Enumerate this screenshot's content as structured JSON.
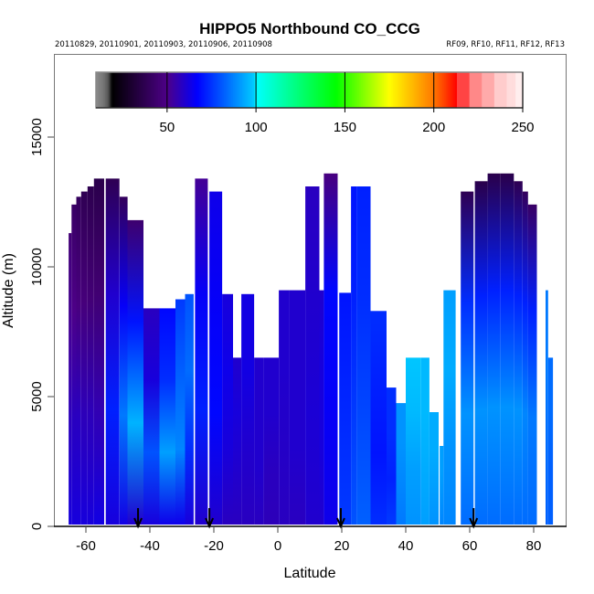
{
  "chart_data": {
    "type": "heatmap",
    "title": "HIPPO5 Northbound CO_CCG",
    "subtitle_left": "20110829, 20110901, 20110903, 20110906, 20110908",
    "subtitle_right": "RF09, RF10, RF11, RF12, RF13",
    "xlabel": "Latitude",
    "ylabel": "Altitude (m)",
    "xlim": [
      -71,
      90
    ],
    "ylim": [
      0,
      18200
    ],
    "xticks": [
      -60,
      -40,
      -20,
      0,
      20,
      40,
      60,
      80
    ],
    "xtick_labels": [
      "-60",
      "-40",
      "-20",
      "0",
      "20",
      "40",
      "60",
      "80"
    ],
    "yticks": [
      0,
      5000,
      10000,
      15000
    ],
    "ytick_labels": [
      "0",
      "5000",
      "10000",
      "15000"
    ],
    "colorbar": {
      "range": [
        10,
        250
      ],
      "ticks": [
        50,
        100,
        150,
        200,
        250
      ],
      "tick_labels": [
        "50",
        "100",
        "150",
        "200",
        "250"
      ],
      "stops": [
        {
          "v": 10,
          "c": "#8a8a8a"
        },
        {
          "v": 14,
          "c": "#777777"
        },
        {
          "v": 17,
          "c": "#555555"
        },
        {
          "v": 19,
          "c": "#000000"
        },
        {
          "v": 50,
          "c": "#4d0088"
        },
        {
          "v": 67,
          "c": "#0000ff"
        },
        {
          "v": 99,
          "c": "#00ccff"
        },
        {
          "v": 100,
          "c": "#00ffff"
        },
        {
          "v": 145,
          "c": "#00ff00"
        },
        {
          "v": 175,
          "c": "#ffff00"
        },
        {
          "v": 200,
          "c": "#ff7700"
        },
        {
          "v": 213,
          "c": "#ff0000"
        }
      ],
      "blocks": [
        {
          "v0": 213,
          "v1": 220,
          "c": "#ff4444"
        },
        {
          "v0": 220,
          "v1": 227,
          "c": "#ff8888"
        },
        {
          "v0": 227,
          "v1": 234,
          "c": "#ffaaaa"
        },
        {
          "v0": 234,
          "v1": 241,
          "c": "#ffcccc"
        },
        {
          "v0": 241,
          "v1": 246,
          "c": "#ffdddd"
        },
        {
          "v0": 246,
          "v1": 250,
          "c": "#ffeeee"
        }
      ]
    },
    "columns": [
      {
        "lat0": -65.4,
        "lat1": -64.5,
        "top": 11300,
        "co": [
          62,
          58,
          52,
          46
        ]
      },
      {
        "lat0": -64.5,
        "lat1": -63.0,
        "top": 12400,
        "co": [
          62,
          58,
          50,
          42
        ]
      },
      {
        "lat0": -63.0,
        "lat1": -61.5,
        "top": 12700,
        "co": [
          62,
          58,
          48,
          40
        ]
      },
      {
        "lat0": -61.5,
        "lat1": -59.5,
        "top": 12900,
        "co": [
          62,
          57,
          47,
          38
        ]
      },
      {
        "lat0": -59.5,
        "lat1": -57.5,
        "top": 13100,
        "co": [
          62,
          57,
          46,
          37
        ]
      },
      {
        "lat0": -57.5,
        "lat1": -54.3,
        "top": 13400,
        "co": [
          63,
          56,
          45,
          36
        ]
      },
      {
        "lat0": -53.8,
        "lat1": -49.5,
        "top": 13400,
        "co": [
          62,
          72,
          60,
          38
        ]
      },
      {
        "lat0": -49.5,
        "lat1": -47.0,
        "top": 12700,
        "co": [
          63,
          86,
          66,
          40
        ]
      },
      {
        "lat0": -47.0,
        "lat1": -42.0,
        "top": 11800,
        "co": [
          60,
          95,
          70,
          44
        ]
      },
      {
        "lat0": -42.0,
        "lat1": -37.0,
        "top": 8400,
        "co": [
          62,
          80,
          62,
          58
        ]
      },
      {
        "lat0": -37.0,
        "lat1": -32.0,
        "top": 8400,
        "co": [
          64,
          92,
          74,
          68
        ]
      },
      {
        "lat0": -32.0,
        "lat1": -29.0,
        "top": 8750,
        "co": [
          64,
          88,
          82,
          76
        ]
      },
      {
        "lat0": -29.0,
        "lat1": -26.3,
        "top": 8950,
        "co": [
          62,
          74,
          84,
          80
        ]
      },
      {
        "lat0": -25.9,
        "lat1": -21.9,
        "top": 13400,
        "co": [
          60,
          72,
          66,
          52
        ]
      },
      {
        "lat0": -21.4,
        "lat1": -17.4,
        "top": 12900,
        "co": [
          60,
          68,
          66,
          64
        ]
      },
      {
        "lat0": -17.4,
        "lat1": -14.0,
        "top": 8950,
        "co": [
          58,
          62,
          64,
          62
        ]
      },
      {
        "lat0": -14.0,
        "lat1": -11.4,
        "top": 6500,
        "co": [
          58,
          60,
          62,
          60
        ]
      },
      {
        "lat0": -11.4,
        "lat1": -7.4,
        "top": 8950,
        "co": [
          58,
          60,
          63,
          63
        ]
      },
      {
        "lat0": -7.4,
        "lat1": -4.4,
        "top": 6500,
        "co": [
          58,
          60,
          60,
          60
        ]
      },
      {
        "lat0": -4.4,
        "lat1": 0.3,
        "top": 6500,
        "co": [
          57,
          58,
          60,
          60
        ]
      },
      {
        "lat0": 0.3,
        "lat1": 3.6,
        "top": 9100,
        "co": [
          58,
          59,
          60,
          60
        ]
      },
      {
        "lat0": 3.6,
        "lat1": 8.6,
        "top": 9100,
        "co": [
          58,
          60,
          60,
          60
        ]
      },
      {
        "lat0": 8.6,
        "lat1": 13.0,
        "top": 13100,
        "co": [
          60,
          61,
          60,
          58
        ]
      },
      {
        "lat0": 13.0,
        "lat1": 14.4,
        "top": 9100,
        "co": [
          60,
          62,
          62,
          60
        ]
      },
      {
        "lat0": 14.4,
        "lat1": 18.7,
        "top": 13600,
        "co": [
          64,
          66,
          68,
          48
        ]
      },
      {
        "lat0": 19.2,
        "lat1": 22.9,
        "top": 9000,
        "co": [
          76,
          74,
          72,
          70
        ]
      },
      {
        "lat0": 22.9,
        "lat1": 24.6,
        "top": 13100,
        "co": [
          80,
          76,
          72,
          70
        ]
      },
      {
        "lat0": 24.6,
        "lat1": 29.0,
        "top": 13100,
        "co": [
          82,
          78,
          74,
          72
        ]
      },
      {
        "lat0": 29.0,
        "lat1": 34.0,
        "top": 8300,
        "co": [
          74,
          70,
          72,
          74
        ]
      },
      {
        "lat0": 34.0,
        "lat1": 37.0,
        "top": 5350,
        "co": [
          76,
          72,
          74,
          74
        ]
      },
      {
        "lat0": 37.0,
        "lat1": 40.0,
        "top": 4750,
        "co": [
          86,
          88,
          90,
          90
        ]
      },
      {
        "lat0": 40.0,
        "lat1": 44.8,
        "top": 6500,
        "co": [
          90,
          92,
          96,
          98
        ]
      },
      {
        "lat0": 44.8,
        "lat1": 47.4,
        "top": 6500,
        "co": [
          92,
          94,
          96,
          96
        ]
      },
      {
        "lat0": 47.4,
        "lat1": 50.3,
        "top": 4400,
        "co": [
          90,
          92,
          94,
          94
        ]
      },
      {
        "lat0": 50.6,
        "lat1": 51.8,
        "top": 3100,
        "co": [
          88,
          90,
          92,
          92
        ]
      },
      {
        "lat0": 51.8,
        "lat1": 55.6,
        "top": 9100,
        "co": [
          88,
          90,
          94,
          92
        ]
      },
      {
        "lat0": 57.2,
        "lat1": 61.2,
        "top": 12900,
        "co": [
          84,
          90,
          74,
          38
        ]
      },
      {
        "lat0": 61.6,
        "lat1": 65.6,
        "top": 13300,
        "co": [
          84,
          90,
          72,
          36
        ]
      },
      {
        "lat0": 65.6,
        "lat1": 69.5,
        "top": 13600,
        "co": [
          84,
          90,
          72,
          36
        ]
      },
      {
        "lat0": 69.5,
        "lat1": 73.8,
        "top": 13600,
        "co": [
          84,
          90,
          72,
          36
        ]
      },
      {
        "lat0": 73.8,
        "lat1": 76.5,
        "top": 13300,
        "co": [
          84,
          90,
          72,
          38
        ]
      },
      {
        "lat0": 76.5,
        "lat1": 78.2,
        "top": 12900,
        "co": [
          84,
          88,
          72,
          40
        ]
      },
      {
        "lat0": 78.2,
        "lat1": 81.0,
        "top": 12400,
        "co": [
          84,
          86,
          72,
          42
        ]
      },
      {
        "lat0": 83.7,
        "lat1": 84.5,
        "top": 9100,
        "co": [
          82,
          84,
          86,
          86
        ]
      },
      {
        "lat0": 84.5,
        "lat1": 86.0,
        "top": 6500,
        "co": [
          82,
          82,
          84,
          84
        ]
      }
    ],
    "flight_markers_lat": [
      -43.7,
      -21.4,
      19.7,
      61.2
    ]
  }
}
